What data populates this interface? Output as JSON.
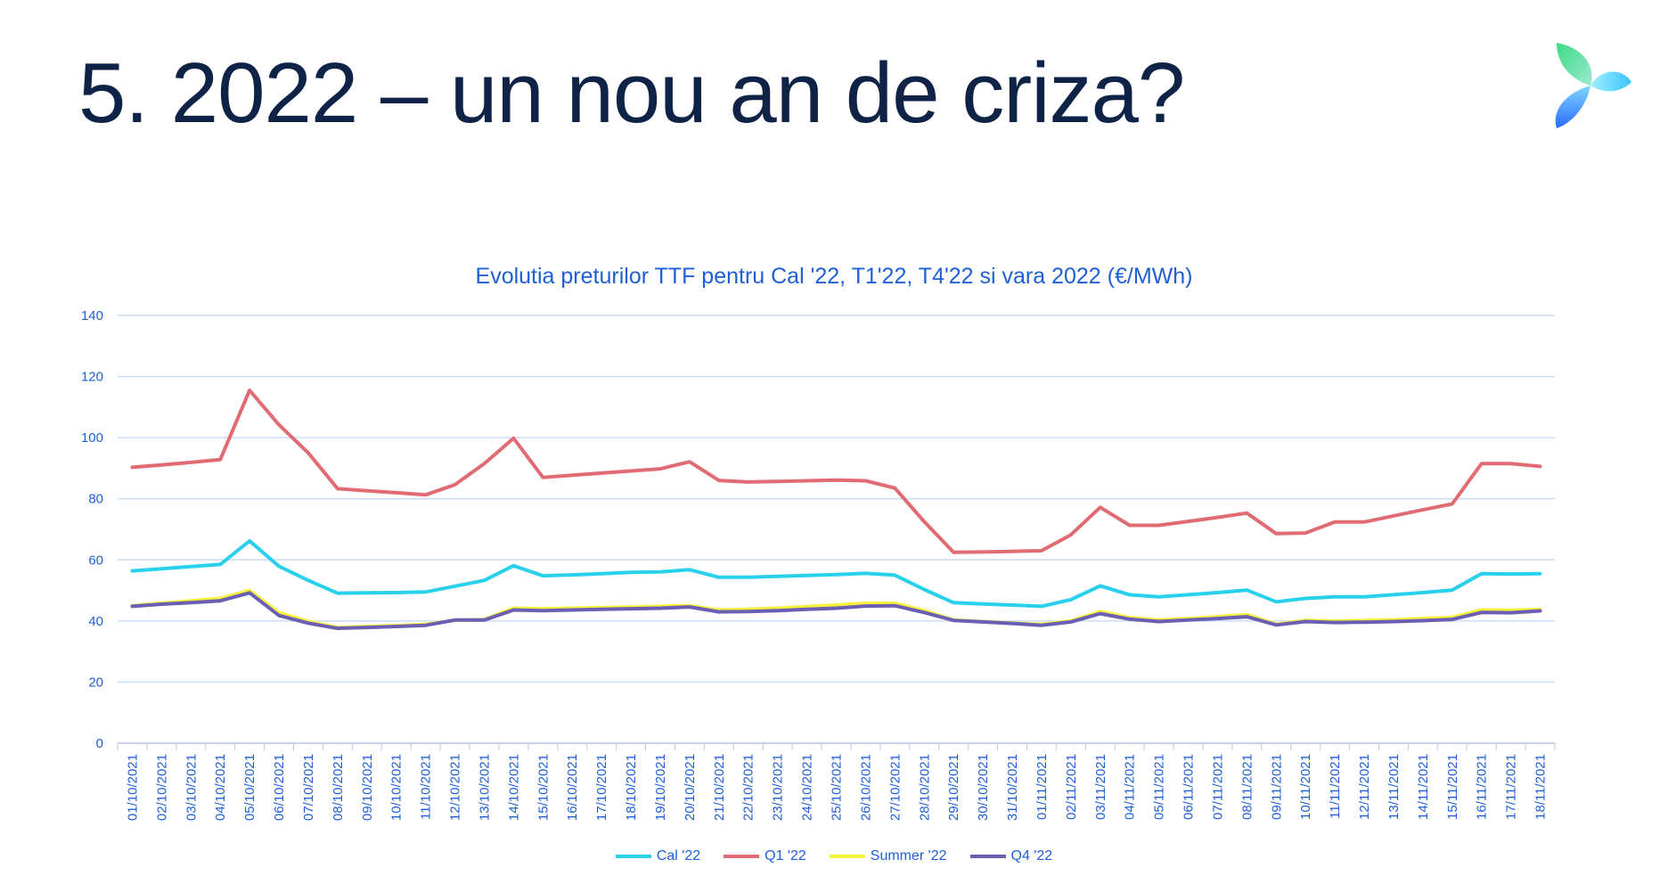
{
  "slide": {
    "title": "5. 2022 – un nou an de criza?"
  },
  "colors": {
    "title": "#0f2347",
    "axis_text": "#1f5fd6",
    "grid": "#c9dcf5"
  },
  "chart_data": {
    "type": "line",
    "title": "Evolutia preturilor TTF pentru Cal '22, T1'22, T4'22 si vara 2022 (€/MWh)",
    "xlabel": "",
    "ylabel": "",
    "ylim": [
      0,
      140
    ],
    "yticks": [
      0,
      20,
      40,
      60,
      80,
      100,
      120,
      140
    ],
    "grid": true,
    "legend_position": "bottom",
    "categories": [
      "01/10/2021",
      "02/10/2021",
      "03/10/2021",
      "04/10/2021",
      "05/10/2021",
      "06/10/2021",
      "07/10/2021",
      "08/10/2021",
      "09/10/2021",
      "10/10/2021",
      "11/10/2021",
      "12/10/2021",
      "13/10/2021",
      "14/10/2021",
      "15/10/2021",
      "16/10/2021",
      "17/10/2021",
      "18/10/2021",
      "19/10/2021",
      "20/10/2021",
      "21/10/2021",
      "22/10/2021",
      "23/10/2021",
      "24/10/2021",
      "25/10/2021",
      "26/10/2021",
      "27/10/2021",
      "28/10/2021",
      "29/10/2021",
      "30/10/2021",
      "31/10/2021",
      "01/11/2021",
      "02/11/2021",
      "03/11/2021",
      "04/11/2021",
      "05/11/2021",
      "06/11/2021",
      "07/11/2021",
      "08/11/2021",
      "09/11/2021",
      "10/11/2021",
      "11/11/2021",
      "12/11/2021",
      "13/11/2021",
      "14/11/2021",
      "15/11/2021",
      "16/11/2021",
      "17/11/2021",
      "18/11/2021"
    ],
    "series": [
      {
        "name": "Cal '22",
        "color": "#29d0ec",
        "values": [
          56.4,
          57.1,
          57.8,
          58.5,
          66.2,
          57.9,
          53.3,
          49.1,
          49.2,
          49.3,
          49.5,
          51.4,
          53.3,
          58.1,
          54.8,
          55.1,
          55.5,
          55.9,
          56.1,
          56.8,
          54.3,
          54.3,
          54.6,
          54.9,
          55.2,
          55.6,
          55.0,
          50.3,
          46.0,
          45.6,
          45.2,
          44.8,
          47.0,
          51.5,
          48.6,
          47.9,
          48.6,
          49.3,
          50.1,
          46.3,
          47.4,
          47.9,
          47.9,
          48.6,
          49.3,
          50.1,
          55.5,
          55.4,
          55.5
        ]
      },
      {
        "name": "Q1 '22",
        "color": "#e06b73",
        "values": [
          90.3,
          91.1,
          91.9,
          92.8,
          115.5,
          104.2,
          95.0,
          83.3,
          82.6,
          82.0,
          81.3,
          84.6,
          91.5,
          99.8,
          87.0,
          87.7,
          88.4,
          89.1,
          89.8,
          92.1,
          86.0,
          85.5,
          85.7,
          85.9,
          86.1,
          85.9,
          83.5,
          72.5,
          62.5,
          62.6,
          62.8,
          63.0,
          68.2,
          77.2,
          71.3,
          71.3,
          72.6,
          73.9,
          75.3,
          68.6,
          68.8,
          72.4,
          72.4,
          74.4,
          76.4,
          78.3,
          91.5,
          91.5,
          90.6
        ]
      },
      {
        "name": "Summer '22",
        "color": "#f6f23a",
        "values": [
          45.0,
          45.8,
          46.6,
          47.4,
          50.0,
          42.7,
          39.8,
          37.9,
          38.2,
          38.5,
          38.9,
          40.2,
          40.5,
          44.2,
          44.0,
          44.2,
          44.4,
          44.6,
          44.8,
          45.0,
          43.6,
          43.8,
          44.2,
          44.7,
          45.2,
          45.8,
          45.8,
          43.4,
          40.3,
          39.8,
          39.3,
          38.9,
          40.0,
          43.1,
          41.1,
          40.3,
          40.8,
          41.4,
          42.1,
          39.0,
          40.2,
          40.0,
          40.2,
          40.4,
          40.8,
          41.2,
          43.6,
          43.5,
          43.8
        ]
      },
      {
        "name": "Q4 '22",
        "color": "#6a5fb5",
        "values": [
          44.8,
          45.5,
          46.0,
          46.6,
          49.2,
          41.8,
          39.3,
          37.6,
          37.9,
          38.2,
          38.6,
          40.3,
          40.3,
          43.6,
          43.4,
          43.6,
          43.8,
          44.0,
          44.2,
          44.6,
          43.0,
          43.1,
          43.4,
          43.8,
          44.2,
          44.9,
          45.0,
          42.8,
          40.2,
          39.7,
          39.2,
          38.6,
          39.7,
          42.4,
          40.6,
          39.8,
          40.3,
          40.8,
          41.4,
          38.7,
          39.8,
          39.5,
          39.6,
          39.8,
          40.1,
          40.5,
          42.8,
          42.7,
          43.3
        ]
      }
    ]
  }
}
